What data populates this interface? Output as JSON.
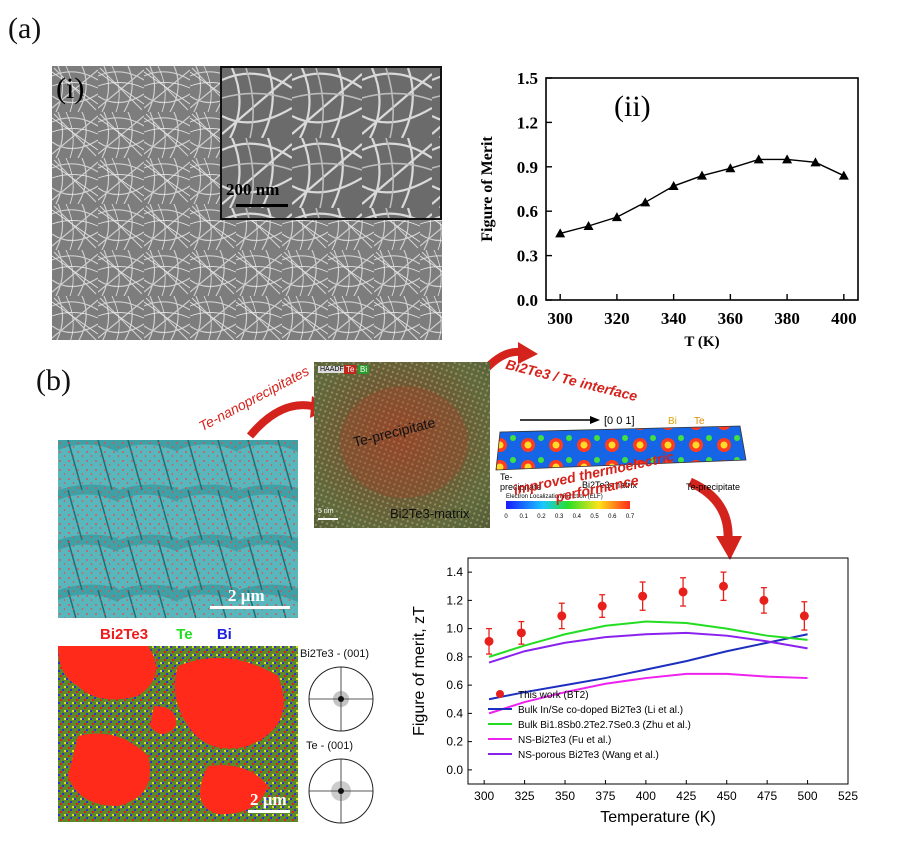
{
  "panel_a": {
    "label": "(a)",
    "sub_i": "(i)",
    "sub_ii": "(ii)",
    "inset_scale": "200 nm"
  },
  "panel_b": {
    "label": "(b)",
    "arrow_label_1": "Te-nanoprecipitates",
    "arrow_label_2": "Bi2Te3 / Te interface",
    "arrow_label_3a": "improved thermoelectric",
    "arrow_label_3b": "performance",
    "sem_scale": "2 µm",
    "eds_scale": "2 µm",
    "eds_legend": {
      "bi2te3": "Bi2Te3",
      "te": "Te",
      "bi": "Bi"
    },
    "tem_badge": "HAADF",
    "tem_te": "Te",
    "tem_bi": "Bi",
    "tem_precipitate": "Te-precipitate",
    "tem_matrix": "Bi2Te3-matrix",
    "tem_scale": "5 nm",
    "elf_direction": "[0 0 1]",
    "elf_bi": "Bi",
    "elf_te": "Te",
    "elf_left": "Te-\nprecipitate",
    "elf_mid": "Bi2Te3-matrix",
    "elf_right": "Te-precipitate",
    "elf_colorbar_title": "Electron Localization Function (ELF)",
    "elf_ticks": [
      "0",
      "0.1",
      "0.2",
      "0.3",
      "0.4",
      "0.5",
      "0.6",
      "0.7"
    ],
    "pole1": "Bi2Te3 - (001)",
    "pole2": "Te - (001)"
  },
  "chart_data": [
    {
      "type": "line",
      "x": [
        300,
        310,
        320,
        330,
        340,
        350,
        360,
        370,
        380,
        390,
        400
      ],
      "series": [
        {
          "values": [
            0.45,
            0.5,
            0.56,
            0.66,
            0.77,
            0.84,
            0.89,
            0.95,
            0.95,
            0.93,
            0.84
          ]
        }
      ],
      "xlabel": "T (K)",
      "ylabel": "Figure of Merit",
      "xlim": [
        295,
        405
      ],
      "ylim": [
        0.0,
        1.5
      ],
      "xticks": [
        300,
        320,
        340,
        360,
        380,
        400
      ],
      "yticks": [
        0.0,
        0.3,
        0.6,
        0.9,
        1.2,
        1.5
      ],
      "marker": "triangle",
      "color": "#000000"
    },
    {
      "type": "line",
      "xlabel": "Temperature (K)",
      "ylabel": "Figure of merit, zT",
      "xlim": [
        290,
        525
      ],
      "ylim": [
        -0.1,
        1.5
      ],
      "xticks": [
        300,
        325,
        350,
        375,
        400,
        425,
        450,
        475,
        500,
        525
      ],
      "yticks": [
        0.0,
        0.2,
        0.4,
        0.6,
        0.8,
        1.0,
        1.2,
        1.4
      ],
      "legend_position": "bottom-right",
      "scatter": {
        "name": "This work (BT2)",
        "color": "#e8201c",
        "x": [
          303,
          323,
          348,
          373,
          398,
          423,
          448,
          473,
          498
        ],
        "y": [
          0.91,
          0.97,
          1.09,
          1.16,
          1.23,
          1.26,
          1.3,
          1.2,
          1.09
        ],
        "err": [
          0.09,
          0.08,
          0.09,
          0.08,
          0.1,
          0.1,
          0.1,
          0.09,
          0.1
        ]
      },
      "series": [
        {
          "name": "Bulk In/Se co-doped Bi2Te3 (Li et al.)",
          "color": "#1d2fbf",
          "x": [
            303,
            325,
            350,
            375,
            400,
            425,
            450,
            475,
            500
          ],
          "values": [
            0.5,
            0.55,
            0.6,
            0.65,
            0.71,
            0.77,
            0.84,
            0.9,
            0.96
          ]
        },
        {
          "name": "Bulk Bi1.8Sb0.2Te2.7Se0.3 (Zhu et al.)",
          "color": "#22dd22",
          "x": [
            303,
            325,
            350,
            375,
            400,
            425,
            450,
            475,
            500
          ],
          "values": [
            0.8,
            0.88,
            0.96,
            1.02,
            1.05,
            1.04,
            1.0,
            0.95,
            0.92
          ]
        },
        {
          "name": "NS-Bi2Te3 (Fu et al.)",
          "color": "#ee22ee",
          "x": [
            303,
            325,
            350,
            375,
            400,
            425,
            450,
            475,
            500
          ],
          "values": [
            0.4,
            0.48,
            0.55,
            0.61,
            0.65,
            0.68,
            0.68,
            0.66,
            0.65
          ]
        },
        {
          "name": "NS-porous Bi2Te3 (Wang et al.)",
          "color": "#8a22ee",
          "x": [
            303,
            325,
            350,
            375,
            400,
            425,
            450,
            475,
            500
          ],
          "values": [
            0.76,
            0.84,
            0.9,
            0.94,
            0.96,
            0.97,
            0.95,
            0.91,
            0.86
          ]
        }
      ]
    }
  ]
}
